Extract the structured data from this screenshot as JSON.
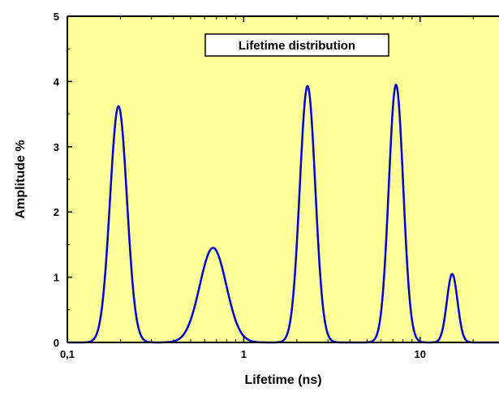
{
  "chart_data": {
    "type": "line",
    "title": "",
    "legend_label": "Lifetime distribution",
    "legend_position": "top-center",
    "xlabel": "Lifetime (ns)",
    "ylabel": "Amplitude %",
    "xscale": "log",
    "xlim": [
      0.1,
      28
    ],
    "ylim": [
      0,
      5
    ],
    "x_ticks": [
      0.1,
      1,
      10
    ],
    "x_tick_labels": [
      "0,1",
      "1",
      "10"
    ],
    "y_ticks": [
      0,
      1,
      2,
      3,
      4,
      5
    ],
    "y_tick_labels": [
      "0",
      "1",
      "2",
      "3",
      "4",
      "5"
    ],
    "grid": false,
    "colors": {
      "plot_background": "#ffff99",
      "line": "#0000cc",
      "legend_background": "#ffffff"
    },
    "series": [
      {
        "peaks": [
          {
            "center": 0.195,
            "amplitude": 3.62,
            "log_width": 0.048
          },
          {
            "center": 0.67,
            "amplitude": 1.45,
            "log_width": 0.075
          },
          {
            "center": 2.3,
            "amplitude": 3.93,
            "log_width": 0.044
          },
          {
            "center": 7.3,
            "amplitude": 3.95,
            "log_width": 0.041
          },
          {
            "center": 15.2,
            "amplitude": 1.05,
            "log_width": 0.03
          }
        ]
      }
    ]
  }
}
